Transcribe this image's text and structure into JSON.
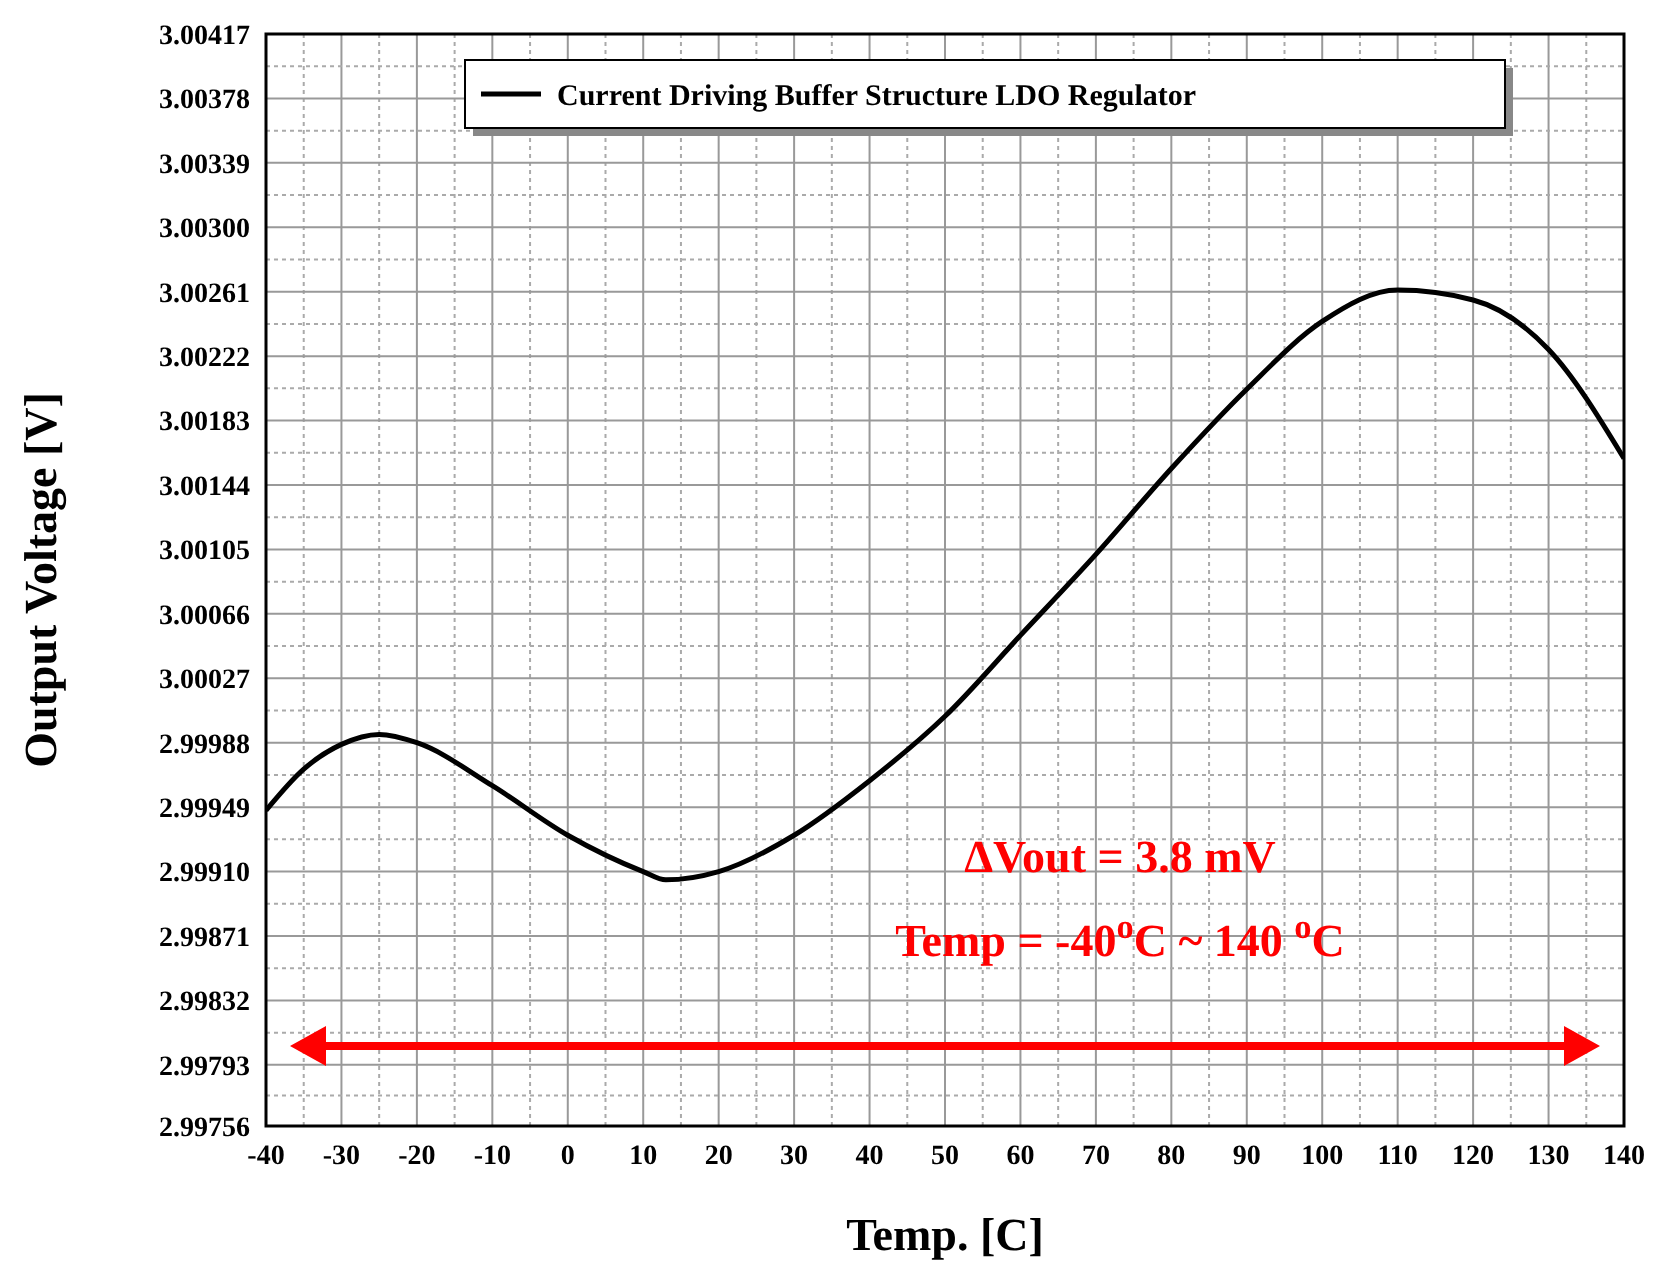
{
  "chart_data": {
    "type": "line",
    "xlabel": "Temp. [C]",
    "ylabel": "Output Voltage [V]",
    "x": [
      -40,
      -35,
      -30,
      -25,
      -20,
      -10,
      0,
      10,
      13,
      20,
      30,
      40,
      50,
      60,
      70,
      80,
      90,
      100,
      110,
      120,
      130,
      140
    ],
    "series": [
      {
        "name": "Current Driving Buffer Structure LDO Regulator",
        "color": "#000000",
        "values": [
          2.99947,
          2.99972,
          2.99987,
          2.99993,
          2.99988,
          2.99962,
          2.99932,
          2.9991,
          2.99905,
          2.9991,
          2.99932,
          2.99965,
          3.00004,
          3.00053,
          3.00102,
          3.00154,
          3.00202,
          3.00243,
          3.00262,
          3.00256,
          3.00226,
          3.0016
        ]
      }
    ],
    "xlim": [
      -40,
      140
    ],
    "xticks": [
      -40,
      -30,
      -20,
      -10,
      0,
      10,
      20,
      30,
      40,
      50,
      60,
      70,
      80,
      90,
      100,
      110,
      120,
      130,
      140
    ],
    "ylim": [
      2.99756,
      3.00417
    ],
    "yticks": [
      {
        "value": 2.99756,
        "label": "2.99756"
      },
      {
        "value": 2.99793,
        "label": "2.99793"
      },
      {
        "value": 2.99832,
        "label": "2.99832"
      },
      {
        "value": 2.99871,
        "label": "2.99871"
      },
      {
        "value": 2.9991,
        "label": "2.99910"
      },
      {
        "value": 2.99949,
        "label": "2.99949"
      },
      {
        "value": 2.99988,
        "label": "2.99988"
      },
      {
        "value": 3.00027,
        "label": "3.00027"
      },
      {
        "value": 3.00066,
        "label": "3.00066"
      },
      {
        "value": 3.00105,
        "label": "3.00105"
      },
      {
        "value": 3.00144,
        "label": "3.00144"
      },
      {
        "value": 3.00183,
        "label": "3.00183"
      },
      {
        "value": 3.00222,
        "label": "3.00222"
      },
      {
        "value": 3.00261,
        "label": "3.00261"
      },
      {
        "value": 3.003,
        "label": "3.00300"
      },
      {
        "value": 3.00339,
        "label": "3.00339"
      },
      {
        "value": 3.00378,
        "label": "3.00378"
      },
      {
        "value": 3.00417,
        "label": "3.00417"
      }
    ],
    "grid": true,
    "legend": "top",
    "marker": "none",
    "line_style": "solid",
    "annotations": [
      "ΔVout = 3.8 mV",
      "Temp = -40$^{o}$C ~ 140 $^{o}$C"
    ]
  }
}
